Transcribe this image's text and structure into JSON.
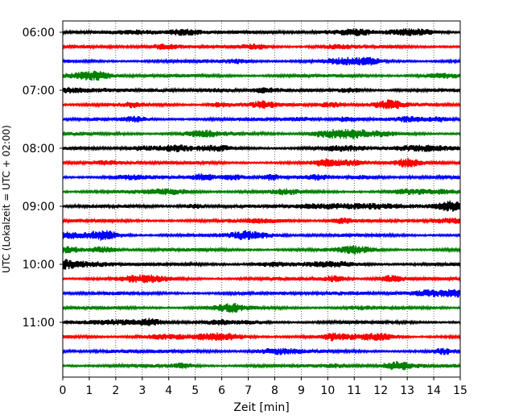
{
  "chart_data": {
    "type": "line",
    "title": "",
    "xlabel": "Zeit  [min]",
    "ylabel": "UTC (Lokalzeit = UTC + 02:00)",
    "xlim": [
      0,
      15
    ],
    "x_ticks": [
      "0",
      "1",
      "2",
      "3",
      "4",
      "5",
      "6",
      "7",
      "8",
      "9",
      "10",
      "11",
      "12",
      "13",
      "14",
      "15"
    ],
    "y_ticks": [
      "06:00",
      "07:00",
      "08:00",
      "09:00",
      "10:00",
      "11:00"
    ],
    "grid": "vertical dotted at each minute",
    "trace_interval_minutes": 15,
    "trace_start": "06:00",
    "trace_colors": [
      "#000000",
      "#ff0000",
      "#0000ff",
      "#008000"
    ],
    "series": [
      {
        "start": "06:00",
        "color": "#000000"
      },
      {
        "start": "06:15",
        "color": "#ff0000"
      },
      {
        "start": "06:30",
        "color": "#0000ff"
      },
      {
        "start": "06:45",
        "color": "#008000"
      },
      {
        "start": "07:00",
        "color": "#000000"
      },
      {
        "start": "07:15",
        "color": "#ff0000"
      },
      {
        "start": "07:30",
        "color": "#0000ff"
      },
      {
        "start": "07:45",
        "color": "#008000"
      },
      {
        "start": "08:00",
        "color": "#000000"
      },
      {
        "start": "08:15",
        "color": "#ff0000"
      },
      {
        "start": "08:30",
        "color": "#0000ff"
      },
      {
        "start": "08:45",
        "color": "#008000"
      },
      {
        "start": "09:00",
        "color": "#000000"
      },
      {
        "start": "09:15",
        "color": "#ff0000"
      },
      {
        "start": "09:30",
        "color": "#0000ff"
      },
      {
        "start": "09:45",
        "color": "#008000"
      },
      {
        "start": "10:00",
        "color": "#000000"
      },
      {
        "start": "10:15",
        "color": "#ff0000"
      },
      {
        "start": "10:30",
        "color": "#0000ff"
      },
      {
        "start": "10:45",
        "color": "#008000"
      },
      {
        "start": "11:00",
        "color": "#000000"
      },
      {
        "start": "11:15",
        "color": "#ff0000"
      },
      {
        "start": "11:30",
        "color": "#0000ff"
      },
      {
        "start": "11:45",
        "color": "#008000"
      }
    ]
  }
}
